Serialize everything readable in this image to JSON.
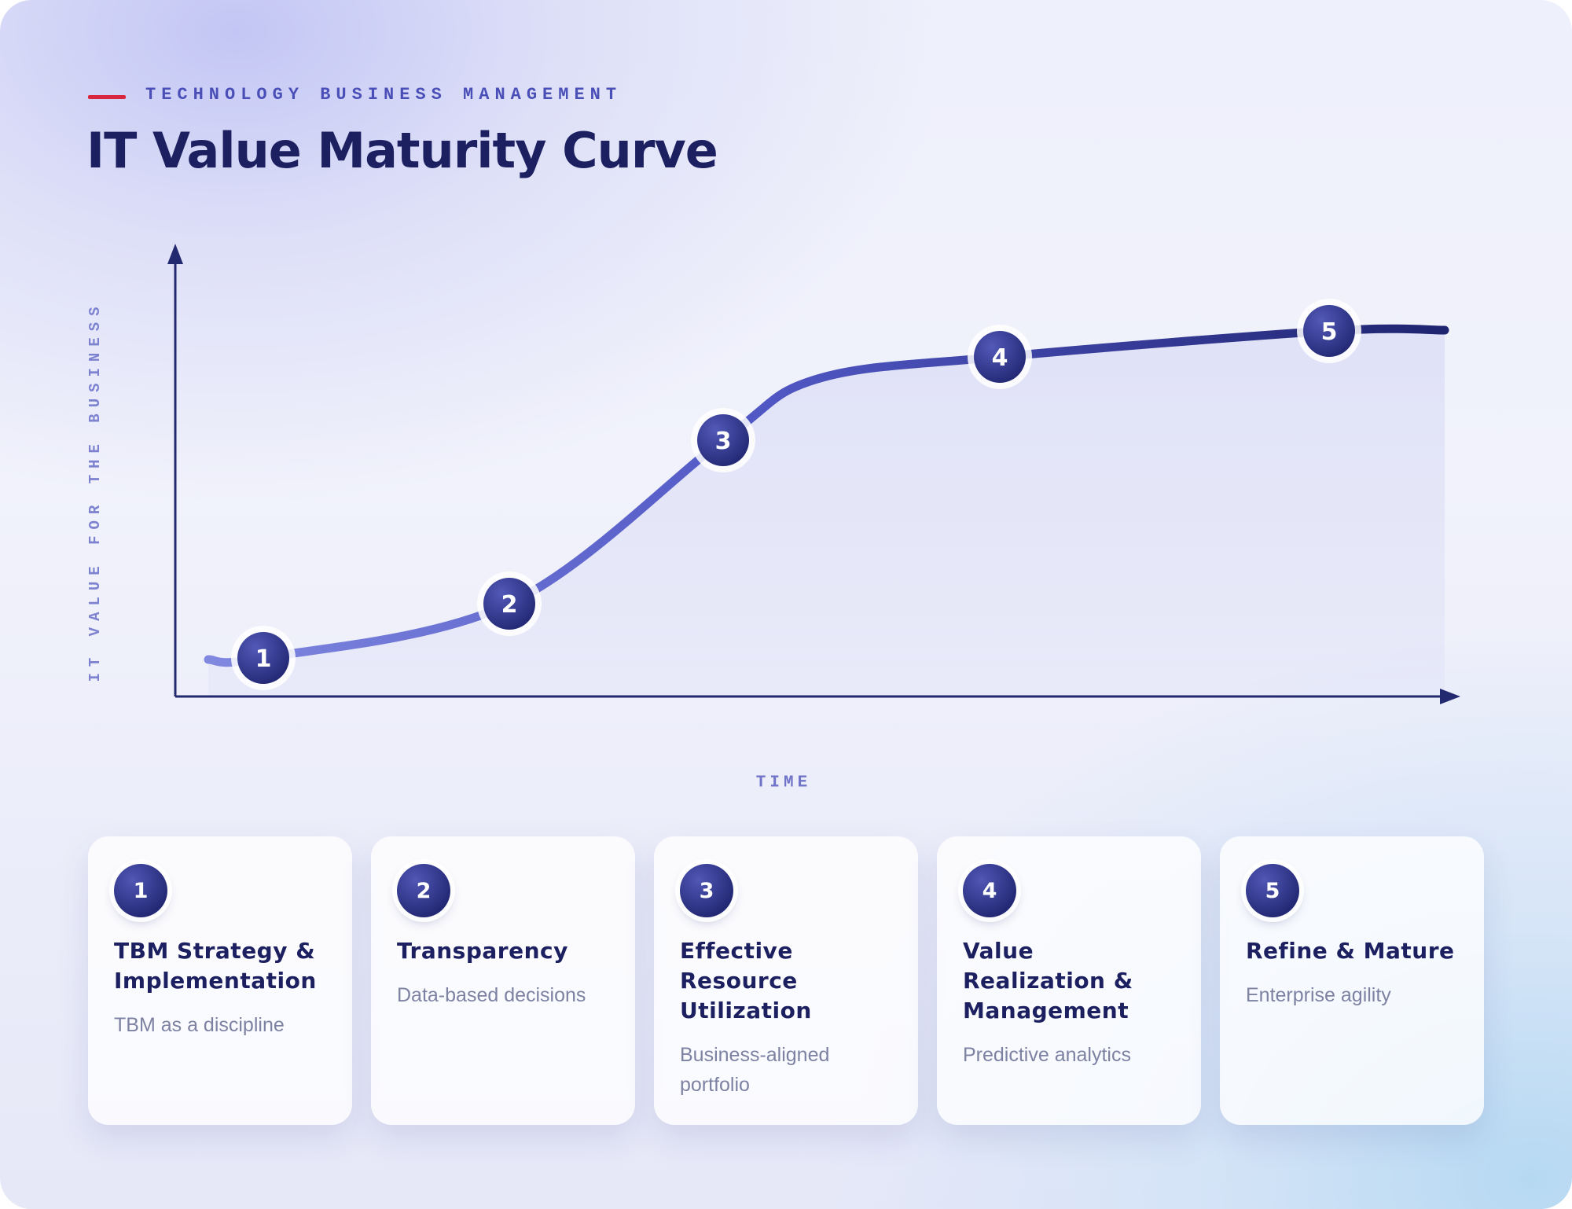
{
  "header": {
    "eyebrow": "TECHNOLOGY BUSINESS MANAGEMENT",
    "title": "IT Value Maturity Curve"
  },
  "axes": {
    "y_label": "IT VALUE FOR THE BUSINESS",
    "x_label": "TIME"
  },
  "stages": [
    {
      "number": 1,
      "title": "TBM Strategy & Implementation",
      "description": "TBM as a discipline"
    },
    {
      "number": 2,
      "title": "Transparency",
      "description": "Data-based decisions"
    },
    {
      "number": 3,
      "title": "Effective Resource Utilization",
      "description": "Business-aligned portfolio"
    },
    {
      "number": 4,
      "title": "Value Realization & Management",
      "description": "Predictive analytics"
    },
    {
      "number": 5,
      "title": "Refine & Mature",
      "description": "Enterprise agility"
    }
  ]
}
